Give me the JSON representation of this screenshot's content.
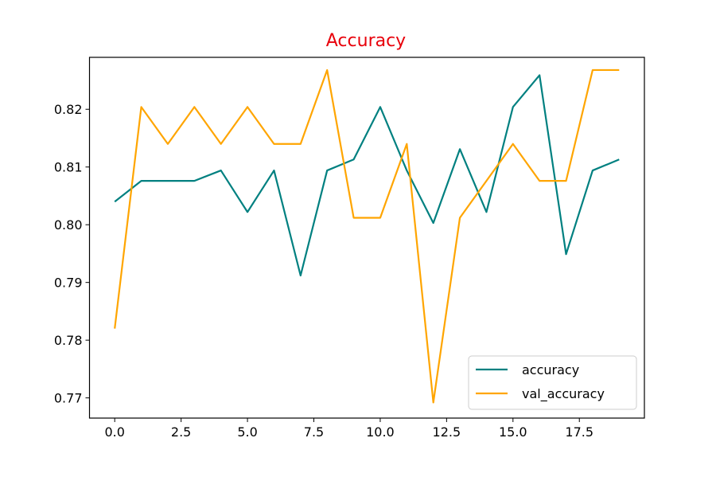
{
  "chart_data": {
    "type": "line",
    "title": "Accuracy",
    "title_color": "#e8000b",
    "xlabel": "",
    "ylabel": "",
    "xlim": [
      -0.95,
      19.95
    ],
    "ylim": [
      0.7665,
      0.829
    ],
    "xticks": [
      0.0,
      2.5,
      5.0,
      7.5,
      10.0,
      12.5,
      15.0,
      17.5
    ],
    "xtick_labels": [
      "0.0",
      "2.5",
      "5.0",
      "7.5",
      "10.0",
      "12.5",
      "15.0",
      "17.5"
    ],
    "yticks": [
      0.77,
      0.78,
      0.79,
      0.8,
      0.81,
      0.82
    ],
    "ytick_labels": [
      "0.77",
      "0.78",
      "0.79",
      "0.80",
      "0.81",
      "0.82"
    ],
    "grid": false,
    "legend_position": "lower-right",
    "x": [
      0,
      1,
      2,
      3,
      4,
      5,
      6,
      7,
      8,
      9,
      10,
      11,
      12,
      13,
      14,
      15,
      16,
      17,
      18,
      19
    ],
    "series": [
      {
        "name": "accuracy",
        "color": "#008080",
        "values": [
          0.804,
          0.8076,
          0.8076,
          0.8076,
          0.8094,
          0.8022,
          0.8094,
          0.7912,
          0.8094,
          0.8113,
          0.8204,
          0.8094,
          0.8003,
          0.8131,
          0.8022,
          0.8204,
          0.8259,
          0.7949,
          0.8094,
          0.8113
        ]
      },
      {
        "name": "val_accuracy",
        "color": "#ffa500",
        "values": [
          0.782,
          0.8204,
          0.814,
          0.8204,
          0.814,
          0.8204,
          0.814,
          0.814,
          0.8268,
          0.8012,
          0.8012,
          0.814,
          0.7692,
          0.8012,
          0.8076,
          0.814,
          0.8076,
          0.8076,
          0.8268,
          0.8268
        ]
      }
    ]
  }
}
